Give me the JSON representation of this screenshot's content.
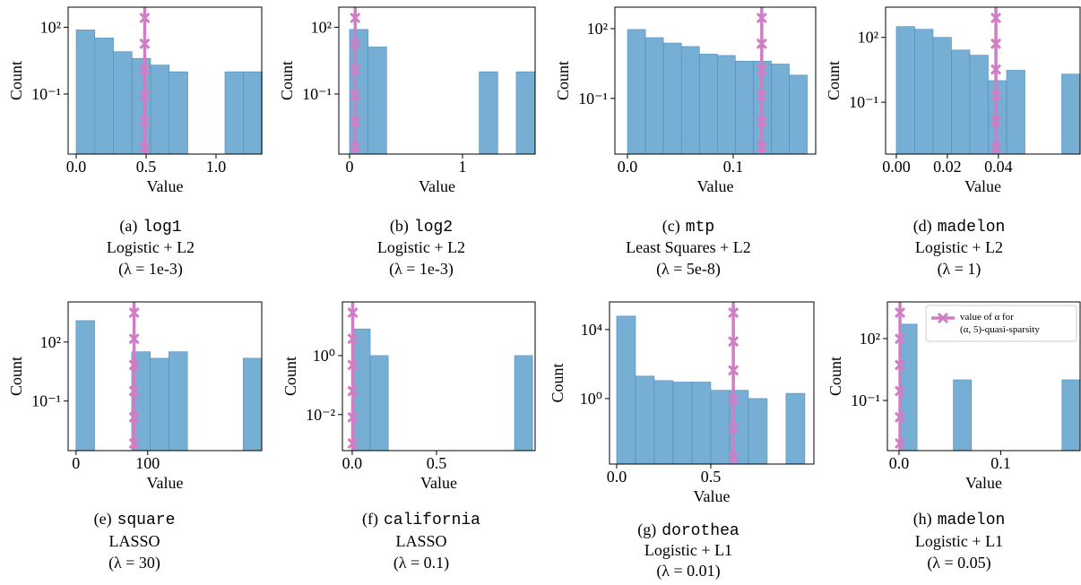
{
  "chart_data": [
    {
      "type": "histogram",
      "xlabel": "Value",
      "ylabel": "Count",
      "yscale": "log",
      "color": "#76aed4",
      "edgecolor": "#4e8cbc",
      "line_color": "#cf7ec6",
      "bins": [
        0,
        0.133,
        0.266,
        0.399,
        0.532,
        0.665,
        0.798,
        0.931,
        1.064,
        1.197,
        1.33
      ],
      "counts": [
        76,
        33,
        8,
        4,
        2,
        1,
        0,
        0,
        1,
        1
      ],
      "alpha": 0.49,
      "xlim": [
        -0.058,
        1.327
      ],
      "xticks": [
        {
          "value": 0,
          "label": "0.0"
        },
        {
          "value": 0.5,
          "label": "0.5"
        },
        {
          "value": 1,
          "label": "1.0"
        }
      ],
      "ylim": [
        0.0002,
        800
      ],
      "yticks": [
        {
          "value": 100,
          "label": "10²"
        },
        {
          "value": 0.1,
          "label": "10⁻¹"
        }
      ],
      "caption": {
        "label": "(a)",
        "dataset": "log1",
        "model": "Logistic + L2",
        "reg": "(λ = 1e-3)"
      }
    },
    {
      "type": "histogram",
      "xlabel": "Value",
      "ylabel": "Count",
      "yscale": "log",
      "color": "#76aed4",
      "edgecolor": "#4e8cbc",
      "line_color": "#cf7ec6",
      "bins": [
        0,
        0.164,
        0.328,
        0.492,
        0.656,
        0.82,
        0.984,
        1.148,
        1.312,
        1.476,
        1.64
      ],
      "counts": [
        80,
        13,
        0,
        0,
        0,
        0,
        0,
        1,
        0,
        1
      ],
      "alpha": 0.05,
      "xlim": [
        -0.095,
        1.643
      ],
      "xticks": [
        0,
        1
      ],
      "ylim": [
        0.0002,
        800
      ],
      "yticks": [
        {
          "value": 100,
          "label": "10²"
        },
        {
          "value": 0.1,
          "label": "10⁻¹"
        }
      ],
      "caption": {
        "label": "(b)",
        "dataset": "log2",
        "model": "Logistic + L2",
        "reg": "(λ = 1e-3)"
      }
    },
    {
      "type": "histogram",
      "xlabel": "Value",
      "ylabel": "Count",
      "yscale": "log",
      "color": "#76aed4",
      "edgecolor": "#4e8cbc",
      "line_color": "#cf7ec6",
      "bins": [
        0,
        0.017,
        0.034,
        0.051,
        0.068,
        0.085,
        0.102,
        0.119,
        0.136,
        0.153,
        0.17
      ],
      "counts": [
        92,
        41,
        24,
        17,
        8,
        7,
        4,
        4,
        3,
        1
      ],
      "alpha": 0.127,
      "xlim": [
        -0.0119,
        0.178
      ],
      "xticks": [
        {
          "value": 0,
          "label": "0.0"
        },
        {
          "value": 0.1,
          "label": "0.1"
        }
      ],
      "ylim": [
        0.0004,
        840
      ],
      "yticks": [
        {
          "value": 100,
          "label": "10²"
        },
        {
          "value": 0.1,
          "label": "10⁻¹"
        }
      ],
      "caption": {
        "label": "(c)",
        "dataset": "mtp",
        "model": "Least Squares + L2",
        "reg": "(λ = 5e-8)"
      }
    },
    {
      "type": "histogram",
      "xlabel": "Value",
      "ylabel": "Count",
      "yscale": "log",
      "color": "#76aed4",
      "edgecolor": "#4e8cbc",
      "line_color": "#cf7ec6",
      "bins": [
        0,
        0.0072,
        0.0144,
        0.0216,
        0.0288,
        0.036,
        0.0432,
        0.0504,
        0.0576,
        0.0648,
        0.072
      ],
      "counts": [
        316,
        237,
        100,
        26,
        15,
        1,
        3,
        0,
        0,
        2
      ],
      "alpha": 0.039,
      "xlim": [
        -0.0042,
        0.072
      ],
      "xticks": [
        {
          "value": 0,
          "label": "0.00"
        },
        {
          "value": 0.02,
          "label": "0.02"
        },
        {
          "value": 0.04,
          "label": "0.04"
        }
      ],
      "ylim": [
        0.0004,
        2500
      ],
      "yticks": [
        {
          "value": 100,
          "label": "10²"
        },
        {
          "value": 0.1,
          "label": "10⁻¹"
        }
      ],
      "caption": {
        "label": "(d)",
        "dataset": "madelon",
        "model": "Logistic + L2",
        "reg": "(λ = 1)"
      }
    },
    {
      "type": "histogram",
      "xlabel": "Value",
      "ylabel": "Count",
      "yscale": "log",
      "color": "#76aed4",
      "edgecolor": "#4e8cbc",
      "line_color": "#cf7ec6",
      "bins": [
        0,
        25.9,
        51.8,
        77.7,
        103.6,
        129.5,
        155.4,
        181.3,
        207.2,
        233.1,
        259
      ],
      "counts": [
        1230,
        0,
        0,
        32,
        15,
        32,
        0,
        0,
        0,
        15
      ],
      "alpha": 81,
      "xlim": [
        -11,
        259
      ],
      "xticks": [
        0,
        100
      ],
      "ylim": [
        0.0003,
        11000
      ],
      "yticks": [
        {
          "value": 100,
          "label": "10²"
        },
        {
          "value": 0.1,
          "label": "10⁻¹"
        }
      ],
      "caption": {
        "label": "(e)",
        "dataset": "square",
        "model": "LASSO",
        "reg": "(λ = 30)"
      }
    },
    {
      "type": "histogram",
      "xlabel": "Value",
      "ylabel": "Count",
      "yscale": "log",
      "color": "#76aed4",
      "edgecolor": "#4e8cbc",
      "line_color": "#cf7ec6",
      "bins": [
        0,
        0.107,
        0.214,
        0.321,
        0.428,
        0.535,
        0.642,
        0.749,
        0.856,
        0.963,
        1.07
      ],
      "counts": [
        8,
        1,
        0,
        0,
        0,
        0,
        0,
        0,
        0,
        1
      ],
      "alpha": 0.003,
      "xlim": [
        -0.058,
        1.085
      ],
      "xticks": [
        {
          "value": 0,
          "label": "0.0"
        },
        {
          "value": 0.5,
          "label": "0.5"
        }
      ],
      "ylim": [
        0.0006,
        66
      ],
      "yticks": [
        {
          "value": 1,
          "label": "10⁰"
        },
        {
          "value": 0.01,
          "label": "10⁻²"
        }
      ],
      "caption": {
        "label": "(f)",
        "dataset": "california",
        "model": "LASSO",
        "reg": "(λ = 0.1)"
      }
    },
    {
      "type": "histogram",
      "xlabel": "Value",
      "ylabel": "Count",
      "yscale": "log",
      "color": "#76aed4",
      "edgecolor": "#4e8cbc",
      "line_color": "#cf7ec6",
      "bins": [
        0,
        0.1,
        0.2,
        0.3,
        0.4,
        0.5,
        0.6,
        0.7,
        0.8,
        0.9,
        1.0
      ],
      "counts": [
        60000,
        20,
        11,
        9,
        9,
        3,
        3,
        1,
        0,
        2
      ],
      "alpha": 0.62,
      "xlim": [
        -0.038,
        1.048
      ],
      "xticks": [
        {
          "value": 0,
          "label": "0.0"
        },
        {
          "value": 0.5,
          "label": "0.5"
        }
      ],
      "ylim": [
        0.00016,
        400000
      ],
      "yticks": [
        {
          "value": 10000,
          "label": "10⁴"
        },
        {
          "value": 1,
          "label": "10⁰"
        }
      ],
      "caption": {
        "label": "(g)",
        "dataset": "dorothea",
        "model": "Logistic + L1",
        "reg": "(λ = 0.01)"
      }
    },
    {
      "type": "histogram",
      "xlabel": "Value",
      "ylabel": "Count",
      "yscale": "log",
      "color": "#76aed4",
      "edgecolor": "#4e8cbc",
      "line_color": "#cf7ec6",
      "bins": [
        0,
        0.0178,
        0.0356,
        0.0534,
        0.0712,
        0.089,
        0.1068,
        0.1246,
        0.1424,
        0.1602,
        0.178
      ],
      "counts": [
        500,
        0,
        0,
        1,
        0,
        0,
        0,
        0,
        0,
        1
      ],
      "alpha": 0.001,
      "xlim": [
        -0.0114,
        0.178
      ],
      "xticks": [
        {
          "value": 0,
          "label": "0.0"
        },
        {
          "value": 0.1,
          "label": "0.1"
        }
      ],
      "ylim": [
        0.00037,
        6000
      ],
      "yticks": [
        {
          "value": 100,
          "label": "10²"
        },
        {
          "value": 0.1,
          "label": "10⁻¹"
        }
      ],
      "legend": "upper right",
      "line_label": [
        "value of α for",
        "(α, 5)-quasi-sparsity"
      ],
      "caption": {
        "label": "(h)",
        "dataset": "madelon",
        "model": "Logistic + L1",
        "reg": "(λ = 0.05)"
      }
    }
  ]
}
